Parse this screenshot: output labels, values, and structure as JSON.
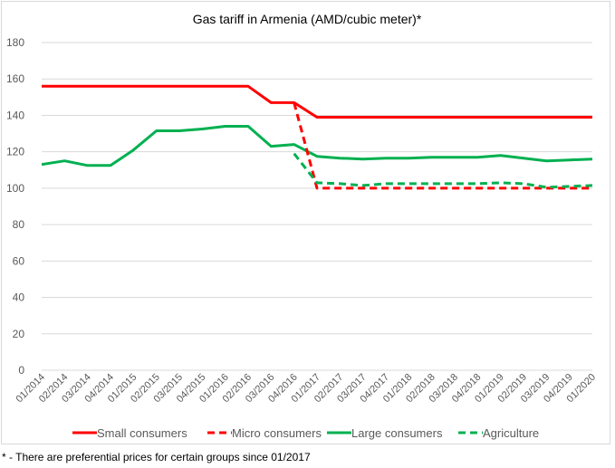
{
  "chart_data": {
    "type": "line",
    "title": "Gas tariff in Armenia (AMD/cubic meter)*",
    "xlabel": "",
    "ylabel": "",
    "ylim": [
      0,
      180
    ],
    "yticks": [
      0,
      20,
      40,
      60,
      80,
      100,
      120,
      140,
      160,
      180
    ],
    "grid": true,
    "legend": "bottom",
    "categories": [
      "01/2014",
      "02/2014",
      "03/2014",
      "04/2014",
      "01/2015",
      "02/2015",
      "03/2015",
      "04/2015",
      "01/2016",
      "02/2016",
      "03/2016",
      "04/2016",
      "01/2017",
      "02/2017",
      "03/2017",
      "04/2017",
      "01/2018",
      "02/2018",
      "03/2018",
      "04/2018",
      "01/2019",
      "02/2019",
      "03/2019",
      "04/2019",
      "01/2020"
    ],
    "series": [
      {
        "name": "Small consumers",
        "color": "#ff0000",
        "dash": false,
        "values": [
          156,
          156,
          156,
          156,
          156,
          156,
          156,
          156,
          156,
          156,
          147,
          147,
          139,
          139,
          139,
          139,
          139,
          139,
          139,
          139,
          139,
          139,
          139,
          139,
          139
        ]
      },
      {
        "name": "Micro consumers",
        "color": "#ff0000",
        "dash": true,
        "values": [
          null,
          null,
          null,
          null,
          null,
          null,
          null,
          null,
          null,
          null,
          null,
          147,
          100,
          100,
          100,
          100,
          100,
          100,
          100,
          100,
          100,
          100,
          100,
          100,
          100
        ]
      },
      {
        "name": "Large consumers",
        "color": "#00b050",
        "dash": false,
        "values": [
          113,
          115,
          112.5,
          112.5,
          121,
          131.5,
          131.5,
          132.5,
          134,
          134,
          123,
          124,
          117.5,
          116.5,
          116,
          116.5,
          116.5,
          117,
          117,
          117,
          118,
          116.5,
          115,
          115.5,
          116
        ]
      },
      {
        "name": "Agriculture",
        "color": "#00b050",
        "dash": true,
        "values": [
          null,
          null,
          null,
          null,
          null,
          null,
          null,
          null,
          null,
          null,
          null,
          119,
          103,
          102.5,
          101.5,
          102.5,
          102.5,
          102.5,
          102.5,
          102.5,
          103,
          102.5,
          100.5,
          101,
          101.5
        ]
      }
    ]
  },
  "footnote": "* - There are preferential prices for certain groups since 01/2017"
}
